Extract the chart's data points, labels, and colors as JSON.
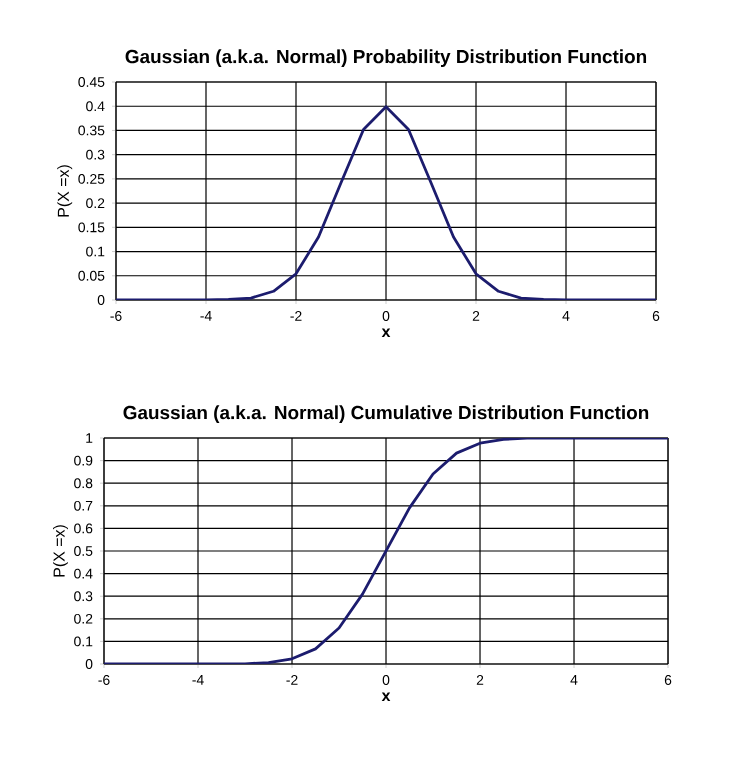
{
  "chart_data": [
    {
      "type": "line",
      "title": "Gaussian (a.k.a. Normal) Probability Distribution Function",
      "xlabel": "x",
      "ylabel": "P(X =x)",
      "x": [
        -6,
        -5.5,
        -5,
        -4.5,
        -4,
        -3.5,
        -3,
        -2.5,
        -2,
        -1.5,
        -1,
        -0.5,
        0,
        0.5,
        1,
        1.5,
        2,
        2.5,
        3,
        3.5,
        4,
        4.5,
        5,
        5.5,
        6
      ],
      "series": [
        {
          "color": "#1c1c6e",
          "values": [
            0,
            0,
            0,
            0,
            0,
            0.001,
            0.004,
            0.018,
            0.054,
            0.13,
            0.242,
            0.352,
            0.399,
            0.352,
            0.242,
            0.13,
            0.054,
            0.018,
            0.004,
            0.001,
            0,
            0,
            0,
            0,
            0
          ]
        }
      ],
      "xlim": [
        -6,
        6
      ],
      "ylim": [
        0,
        0.45
      ],
      "xticks": [
        -6,
        -4,
        -2,
        0,
        2,
        4,
        6
      ],
      "yticks": [
        0,
        0.05,
        0.1,
        0.15,
        0.2,
        0.25,
        0.3,
        0.35,
        0.4,
        0.45
      ],
      "grid": true
    },
    {
      "type": "line",
      "title": "Gaussian (a.k.a. Normal) Cumulative Distribution Function",
      "xlabel": "x",
      "ylabel": "P(X =x)",
      "x": [
        -6,
        -5.5,
        -5,
        -4.5,
        -4,
        -3.5,
        -3,
        -2.5,
        -2,
        -1.5,
        -1,
        -0.5,
        0,
        0.5,
        1,
        1.5,
        2,
        2.5,
        3,
        3.5,
        4,
        4.5,
        5,
        5.5,
        6
      ],
      "series": [
        {
          "color": "#1c1c6e",
          "values": [
            0,
            0,
            0,
            0,
            0,
            0,
            0.001,
            0.006,
            0.023,
            0.067,
            0.159,
            0.309,
            0.5,
            0.691,
            0.841,
            0.933,
            0.977,
            0.994,
            0.999,
            1,
            1,
            1,
            1,
            1,
            1
          ]
        }
      ],
      "xlim": [
        -6,
        6
      ],
      "ylim": [
        0,
        1
      ],
      "xticks": [
        -6,
        -4,
        -2,
        0,
        2,
        4,
        6
      ],
      "yticks": [
        0,
        0.1,
        0.2,
        0.3,
        0.4,
        0.5,
        0.6,
        0.7,
        0.8,
        0.9,
        1
      ],
      "grid": true
    }
  ]
}
